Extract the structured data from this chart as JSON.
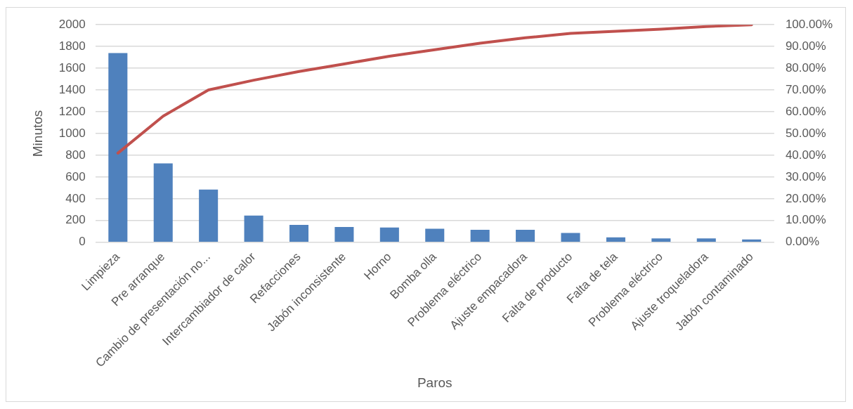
{
  "chart_data": {
    "type": "bar",
    "xlabel": "Paros",
    "ylabel": "Minutos",
    "categories": [
      "Limpieza",
      "Pre arranque",
      "Cambio de presentación no...",
      "Intercambiador de calor",
      "Refacciones",
      "Jabón inconsistente",
      "Horno",
      "Bomba olla",
      "Problema eléctrico",
      "Ajuste empacadora",
      "Falta de producto",
      "Falta de tela",
      "Problema eléctrico",
      "Ajuste troqueladora",
      "Jabón contaminado"
    ],
    "series": [
      {
        "color": "#4f81bd",
        "values": [
          1740,
          725,
          485,
          245,
          160,
          140,
          135,
          125,
          115,
          115,
          85,
          45,
          35,
          35,
          25
        ]
      },
      {
        "type": "line",
        "axis": "y2",
        "color": "#c0504d",
        "values": [
          41,
          58,
          70,
          74.5,
          78.5,
          82,
          85.5,
          88.5,
          91.5,
          94,
          96,
          97,
          98,
          99.2,
          100
        ]
      }
    ],
    "ylim": [
      0,
      2000
    ],
    "yticks": [
      0,
      200,
      400,
      600,
      800,
      1000,
      1200,
      1400,
      1600,
      1800,
      2000
    ],
    "y2lim": [
      0,
      100
    ],
    "y2ticks": [
      {
        "value": 0,
        "label": "0.00%"
      },
      {
        "value": 10,
        "label": "10.00%"
      },
      {
        "value": 20,
        "label": "20.00%"
      },
      {
        "value": 30,
        "label": "30.00%"
      },
      {
        "value": 40,
        "label": "40.00%"
      },
      {
        "value": 50,
        "label": "50.00%"
      },
      {
        "value": 60,
        "label": "60.00%"
      },
      {
        "value": 70,
        "label": "70.00%"
      },
      {
        "value": 80,
        "label": "80.00%"
      },
      {
        "value": 90,
        "label": "90.00%"
      },
      {
        "value": 100,
        "label": "100.00%"
      }
    ],
    "grid": "y",
    "legend": false,
    "marker": "none",
    "line_style": "solid"
  }
}
